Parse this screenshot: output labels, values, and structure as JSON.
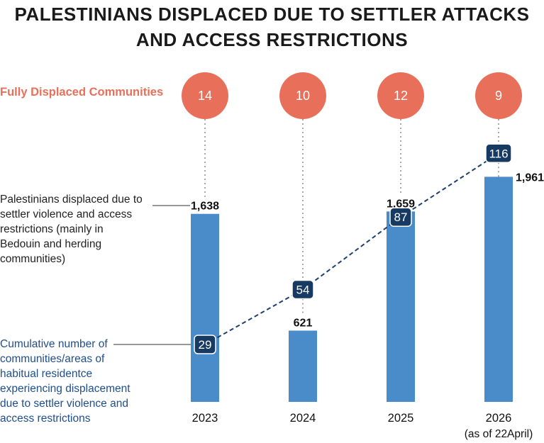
{
  "title_lines": [
    "PALESTINIANS DISPLACED DUE TO SETTLER ATTACKS",
    "AND ACCESS RESTRICTIONS"
  ],
  "fully_displaced_label": "Fully Displaced Communities",
  "bar_annotation_lines": [
    "Palestinians displaced due to",
    "settler violence and access",
    "restrictions (mainly in",
    "Bedouin and herding",
    "communities)"
  ],
  "cumulative_annotation_lines": [
    "Cumulative number of",
    "communities/areas of",
    "habitual residentce",
    "experiencing displacement",
    "due to settler violence and",
    "access restrictions"
  ],
  "colors": {
    "bar": "#4a8bc9",
    "circle": "#e8705a",
    "marker": "#173a63",
    "dashed_line": "#1f3f6e",
    "fully_displaced_text": "#e8705a",
    "cumulative_text": "#1f4e8c"
  },
  "chart_data": {
    "type": "bar",
    "categories": [
      "2023",
      "2024",
      "2025",
      "2026"
    ],
    "category_sublabels": [
      "",
      "",
      "",
      "(as of 22April)"
    ],
    "series": [
      {
        "name": "Palestinians displaced due to settler violence and access restrictions (mainly in Bedouin and herding communities)",
        "values": [
          1638,
          621,
          1659,
          1961
        ],
        "value_labels": [
          "1,638",
          "621",
          "1,659",
          "1,961"
        ]
      },
      {
        "name": "Cumulative number of communities/areas of habitual residentce experiencing displacement due to settler violence and access restrictions",
        "type": "line",
        "values": [
          29,
          54,
          87,
          116
        ],
        "value_labels": [
          "29",
          "54",
          "87",
          "116"
        ]
      },
      {
        "name": "Fully Displaced Communities",
        "type": "marker",
        "values": [
          14,
          10,
          12,
          9
        ],
        "value_labels": [
          "14",
          "10",
          "12",
          "9"
        ]
      }
    ],
    "ylim": [
      0,
      2200
    ],
    "line_ylim": [
      0,
      160
    ],
    "grid": false,
    "legend": "annotations on left"
  }
}
